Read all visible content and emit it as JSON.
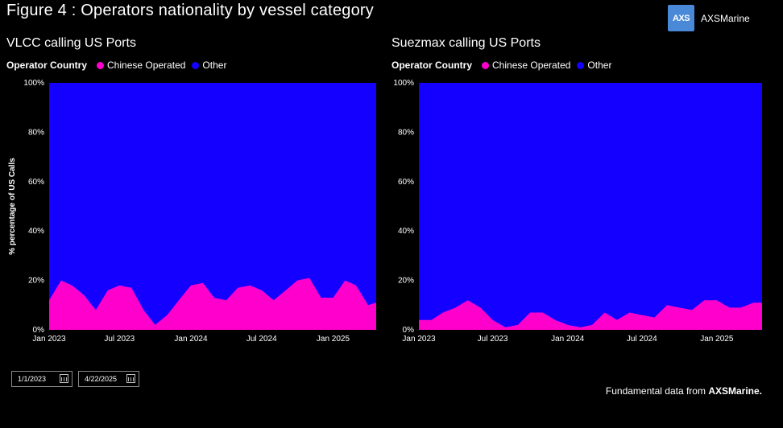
{
  "figure_title": "Figure 4 : Operators nationality by vessel category",
  "brand": {
    "mark": "AXS",
    "name": "AXSMarine"
  },
  "legend": {
    "title": "Operator Country",
    "items": [
      "Chinese Operated",
      "Other"
    ]
  },
  "colors": {
    "chinese": "#ff00cc",
    "other": "#1400ff",
    "background": "#000000"
  },
  "date_filter": {
    "start": "1/1/2023",
    "end": "4/22/2025",
    "icon": "calendar-icon"
  },
  "footer": {
    "prefix": "Fundamental data from ",
    "brand": "AXSMarine."
  },
  "chart_data": [
    {
      "type": "area",
      "stacked": "percent",
      "title": "VLCC calling US Ports",
      "ylabel": "% percentage of US Calls",
      "ylim": [
        0,
        100
      ],
      "xlim": [
        "2023-01-01",
        "2025-04-22"
      ],
      "x_ticks": [
        "Jan 2023",
        "Jul 2023",
        "Jan 2024",
        "Jul 2024",
        "Jan 2025"
      ],
      "y_ticks": [
        "0%",
        "20%",
        "40%",
        "60%",
        "80%",
        "100%"
      ],
      "legend_position": "top-left",
      "x": [
        "2023-01-01",
        "2023-02-01",
        "2023-03-01",
        "2023-04-01",
        "2023-05-01",
        "2023-06-01",
        "2023-07-01",
        "2023-08-01",
        "2023-09-01",
        "2023-10-01",
        "2023-11-01",
        "2023-12-01",
        "2024-01-01",
        "2024-02-01",
        "2024-03-01",
        "2024-04-01",
        "2024-05-01",
        "2024-06-01",
        "2024-07-01",
        "2024-08-01",
        "2024-09-01",
        "2024-10-01",
        "2024-11-01",
        "2024-12-01",
        "2025-01-01",
        "2025-02-01",
        "2025-03-01",
        "2025-04-01",
        "2025-04-22"
      ],
      "series": [
        {
          "name": "Chinese Operated",
          "values": [
            12,
            20,
            18,
            14,
            8,
            16,
            18,
            17,
            8,
            2,
            6,
            12,
            18,
            19,
            13,
            12,
            17,
            18,
            16,
            12,
            16,
            20,
            21,
            13,
            13,
            20,
            18,
            10,
            11
          ]
        },
        {
          "name": "Other",
          "values": [
            88,
            80,
            82,
            86,
            92,
            84,
            82,
            83,
            92,
            98,
            94,
            88,
            82,
            81,
            87,
            88,
            83,
            82,
            84,
            88,
            84,
            80,
            79,
            87,
            87,
            80,
            82,
            90,
            89
          ]
        }
      ]
    },
    {
      "type": "area",
      "stacked": "percent",
      "title": "Suezmax calling US Ports",
      "ylabel": "",
      "ylim": [
        0,
        100
      ],
      "xlim": [
        "2023-01-01",
        "2025-04-22"
      ],
      "x_ticks": [
        "Jan 2023",
        "Jul 2023",
        "Jan 2024",
        "Jul 2024",
        "Jan 2025"
      ],
      "y_ticks": [
        "0%",
        "20%",
        "40%",
        "60%",
        "80%",
        "100%"
      ],
      "legend_position": "top-left",
      "x": [
        "2023-01-01",
        "2023-02-01",
        "2023-03-01",
        "2023-04-01",
        "2023-05-01",
        "2023-06-01",
        "2023-07-01",
        "2023-08-01",
        "2023-09-01",
        "2023-10-01",
        "2023-11-01",
        "2023-12-01",
        "2024-01-01",
        "2024-02-01",
        "2024-03-01",
        "2024-04-01",
        "2024-05-01",
        "2024-06-01",
        "2024-07-01",
        "2024-08-01",
        "2024-09-01",
        "2024-10-01",
        "2024-11-01",
        "2024-12-01",
        "2025-01-01",
        "2025-02-01",
        "2025-03-01",
        "2025-04-01",
        "2025-04-22"
      ],
      "series": [
        {
          "name": "Chinese Operated",
          "values": [
            4,
            4,
            7,
            9,
            12,
            9,
            4,
            1,
            2,
            7,
            7,
            4,
            2,
            1,
            2,
            7,
            4,
            7,
            6,
            5,
            10,
            9,
            8,
            12,
            12,
            9,
            9,
            11,
            11
          ]
        },
        {
          "name": "Other",
          "values": [
            96,
            96,
            93,
            91,
            88,
            91,
            96,
            99,
            98,
            93,
            93,
            96,
            98,
            99,
            98,
            93,
            96,
            93,
            94,
            95,
            90,
            91,
            92,
            88,
            88,
            91,
            91,
            89,
            89
          ]
        }
      ]
    }
  ]
}
